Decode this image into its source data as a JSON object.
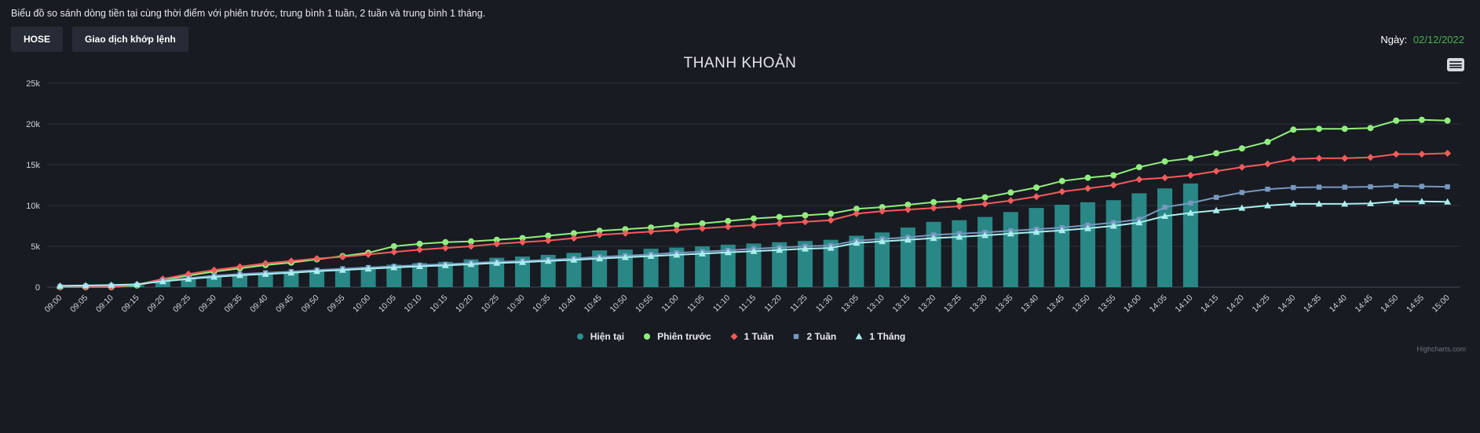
{
  "header": {
    "description": "Biểu đồ so sánh dòng tiền tại cùng thời điểm với phiên trước, trung bình 1 tuần, 2 tuần và trung bình 1 tháng.",
    "buttons": {
      "exchange": "HOSE",
      "matched_orders": "Giao dịch khớp lệnh"
    },
    "date_label": "Ngày:",
    "date_value": "02/12/2022",
    "date_color": "#4caf50"
  },
  "chart": {
    "title": "THANH KHOẢN",
    "credit": "Highcharts.com"
  },
  "chart_data": {
    "type": "bar",
    "subtype": "column + line combo",
    "title": "THANH KHOẢN",
    "xlabel": "",
    "ylabel": "",
    "ylim": [
      0,
      25000
    ],
    "grid": true,
    "legend_position": "bottom",
    "background": "#181b22",
    "yticks": [
      {
        "value": 0,
        "label": "0"
      },
      {
        "value": 5000,
        "label": "5k"
      },
      {
        "value": 10000,
        "label": "10k"
      },
      {
        "value": 15000,
        "label": "15k"
      },
      {
        "value": 20000,
        "label": "20k"
      },
      {
        "value": 25000,
        "label": "25k"
      }
    ],
    "categories": [
      "09:00",
      "09:05",
      "09:10",
      "09:15",
      "09:20",
      "09:25",
      "09:30",
      "09:35",
      "09:40",
      "09:45",
      "09:50",
      "09:55",
      "10:00",
      "10:05",
      "10:10",
      "10:15",
      "10:20",
      "10:25",
      "10:30",
      "10:35",
      "10:40",
      "10:45",
      "10:50",
      "10:55",
      "11:00",
      "11:05",
      "11:10",
      "11:15",
      "11:20",
      "11:25",
      "11:30",
      "13:05",
      "13:10",
      "13:15",
      "13:20",
      "13:25",
      "13:30",
      "13:35",
      "13:40",
      "13:45",
      "13:50",
      "13:55",
      "14:00",
      "14:05",
      "14:10",
      "14:15",
      "14:20",
      "14:25",
      "14:30",
      "14:35",
      "14:40",
      "14:45",
      "14:50",
      "14:55",
      "15:00"
    ],
    "series": [
      {
        "key": "hien-tai",
        "name": "Hiện tại",
        "type": "column",
        "color": "#2b908f",
        "marker": "circle",
        "values": [
          0,
          0,
          0,
          150,
          700,
          1000,
          1300,
          1450,
          1650,
          1900,
          2100,
          2300,
          2500,
          2750,
          2950,
          3100,
          3400,
          3600,
          3750,
          3950,
          4200,
          4500,
          4600,
          4700,
          4850,
          5000,
          5200,
          5350,
          5500,
          5650,
          5800,
          6300,
          6700,
          7300,
          8000,
          8200,
          8600,
          9200,
          9700,
          10100,
          10400,
          10650,
          11500,
          12100,
          12700,
          null,
          null,
          null,
          null,
          null,
          null,
          null,
          null,
          null,
          null
        ]
      },
      {
        "key": "phien-truoc",
        "name": "Phiên trước",
        "type": "line",
        "color": "#90ee7e",
        "marker": "circle",
        "values": [
          0,
          0,
          0,
          200,
          900,
          1400,
          1900,
          2300,
          2700,
          3000,
          3400,
          3800,
          4200,
          5000,
          5300,
          5500,
          5600,
          5800,
          6000,
          6300,
          6600,
          6900,
          7100,
          7300,
          7600,
          7800,
          8100,
          8400,
          8600,
          8800,
          9000,
          9600,
          9800,
          10100,
          10400,
          10600,
          11000,
          11600,
          12200,
          13000,
          13400,
          13700,
          14700,
          15400,
          15800,
          16400,
          17000,
          17800,
          19300,
          19400,
          19400,
          19500,
          20400,
          20500,
          20400
        ]
      },
      {
        "key": "1-tuan",
        "name": "1 Tuần",
        "type": "line",
        "color": "#f45b5b",
        "marker": "diamond",
        "values": [
          0,
          0,
          0,
          300,
          1000,
          1600,
          2100,
          2500,
          2900,
          3200,
          3500,
          3700,
          4000,
          4300,
          4600,
          4800,
          5000,
          5300,
          5500,
          5700,
          6000,
          6400,
          6600,
          6800,
          7000,
          7200,
          7400,
          7600,
          7800,
          8000,
          8200,
          9000,
          9300,
          9500,
          9700,
          9900,
          10200,
          10600,
          11100,
          11700,
          12100,
          12500,
          13200,
          13400,
          13700,
          14200,
          14700,
          15100,
          15700,
          15800,
          15800,
          15900,
          16300,
          16300,
          16400
        ]
      },
      {
        "key": "2-tuan",
        "name": "2 Tuần",
        "type": "line",
        "color": "#7798bf",
        "marker": "square",
        "values": [
          100,
          150,
          200,
          300,
          800,
          1100,
          1400,
          1600,
          1750,
          1900,
          2100,
          2250,
          2400,
          2550,
          2700,
          2800,
          2950,
          3100,
          3200,
          3350,
          3500,
          3700,
          3850,
          4000,
          4200,
          4350,
          4500,
          4700,
          4850,
          5000,
          5100,
          5700,
          5900,
          6100,
          6400,
          6550,
          6700,
          6900,
          7100,
          7300,
          7600,
          7900,
          8300,
          9800,
          10300,
          11000,
          11600,
          12000,
          12200,
          12250,
          12250,
          12300,
          12400,
          12350,
          12300
        ]
      },
      {
        "key": "1-thang",
        "name": "1 Tháng",
        "type": "line",
        "color": "#aaeeee",
        "marker": "triangle",
        "values": [
          150,
          200,
          250,
          350,
          700,
          1000,
          1250,
          1450,
          1600,
          1750,
          1950,
          2100,
          2250,
          2400,
          2550,
          2650,
          2800,
          2950,
          3050,
          3200,
          3350,
          3500,
          3650,
          3800,
          3950,
          4100,
          4250,
          4400,
          4550,
          4700,
          4800,
          5400,
          5600,
          5800,
          6000,
          6150,
          6350,
          6550,
          6750,
          6950,
          7200,
          7500,
          7900,
          8700,
          9100,
          9400,
          9700,
          10000,
          10200,
          10200,
          10200,
          10250,
          10500,
          10500,
          10450
        ]
      }
    ]
  }
}
